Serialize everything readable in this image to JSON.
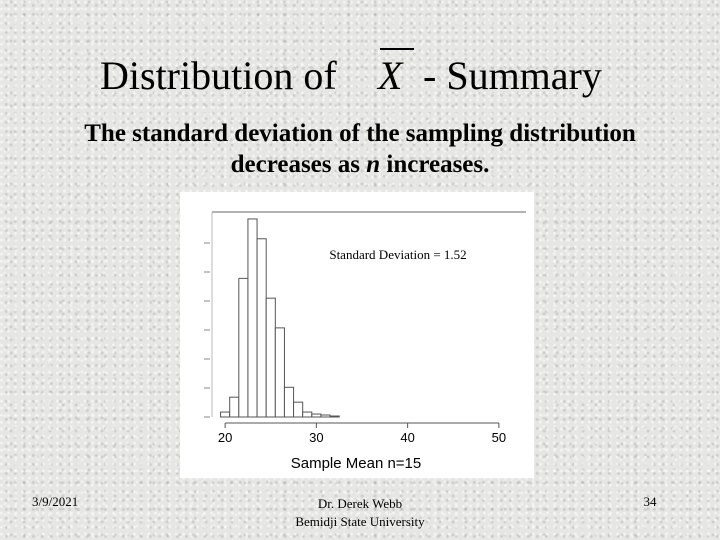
{
  "slide": {
    "title_prefix": "Distribution of",
    "title_symbol": "X",
    "title_suffix": "- Summary",
    "subtitle_part1": "The standard deviation of the sampling distribution",
    "subtitle_part2": "decreases as ",
    "subtitle_var": "n",
    "subtitle_part3": " increases."
  },
  "footer": {
    "date": "3/9/2021",
    "author": "Dr. Derek Webb",
    "institution": "Bemidji State University",
    "page": "34"
  },
  "chart_data": {
    "type": "bar",
    "xlabel": "Sample  Mean n=15",
    "annotation": "Standard Deviation = 1.52",
    "xlim": [
      19,
      51
    ],
    "xticks": [
      20,
      30,
      40,
      50
    ],
    "bin_width": 1,
    "bins": [
      20,
      21,
      22,
      23,
      24,
      25,
      26,
      27,
      28,
      29,
      30,
      31,
      32
    ],
    "values": [
      0.5,
      2,
      14,
      20,
      18,
      12,
      9,
      3,
      1.5,
      0.5,
      0.3,
      0.2,
      0.1
    ],
    "ylim": [
      0,
      20.5
    ]
  }
}
